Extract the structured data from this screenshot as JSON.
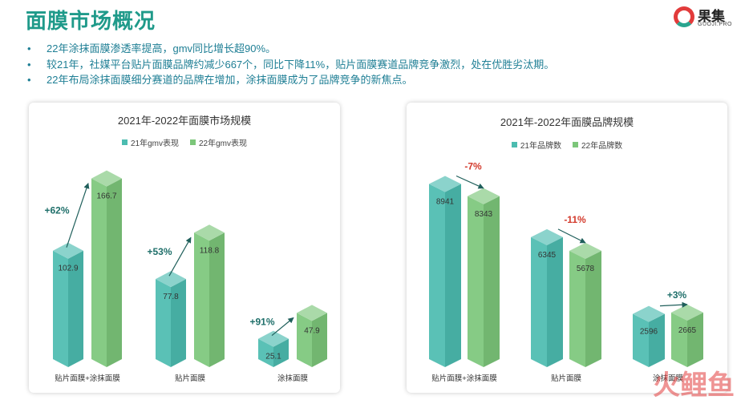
{
  "header": {
    "title": "面膜市场概况",
    "logo_text": "果集",
    "logo_sub": "GUOJI.PRO"
  },
  "bullets": [
    "22年涂抹面膜渗透率提高，gmv同比增长超90%。",
    "较21年，社媒平台贴片面膜品牌约减少667个，同比下降11%，贴片面膜赛道品牌竞争激烈，处在优胜劣汰期。",
    "22年布局涂抹面膜细分赛道的品牌在增加，涂抹面膜成为了品牌竞争的新焦点。"
  ],
  "colors": {
    "teal": "#4cbcb0",
    "green": "#7cc67a",
    "title": "#1f9a8a",
    "down": "#d33a2c",
    "up": "#1f6f6a"
  },
  "chart_data": [
    {
      "type": "bar",
      "title": "2021年-2022年面膜市场规模",
      "categories": [
        "贴片面膜+涂抹面膜",
        "贴片面膜",
        "涂抹面膜"
      ],
      "series": [
        {
          "name": "21年gmv表现",
          "values": [
            102.9,
            77.8,
            25.1
          ]
        },
        {
          "name": "22年gmv表现",
          "values": [
            166.7,
            118.8,
            47.9
          ]
        }
      ],
      "growth_labels": [
        "+62%",
        "+53%",
        "+91%"
      ],
      "ylim": [
        0,
        170
      ],
      "legend": "top-center",
      "grid": false
    },
    {
      "type": "bar",
      "title": "2021年-2022年面膜品牌规模",
      "categories": [
        "贴片面膜+涂抹面膜",
        "贴片面膜",
        "涂抹面膜"
      ],
      "series": [
        {
          "name": "21年品牌数",
          "values": [
            8941,
            6345,
            2596
          ]
        },
        {
          "name": "22年品牌数",
          "values": [
            8343,
            5678,
            2665
          ]
        }
      ],
      "growth_labels": [
        "-7%",
        "-11%",
        "+3%"
      ],
      "ylim": [
        0,
        9000
      ],
      "legend": "top-center",
      "grid": false
    }
  ],
  "watermark": "火鲤鱼"
}
